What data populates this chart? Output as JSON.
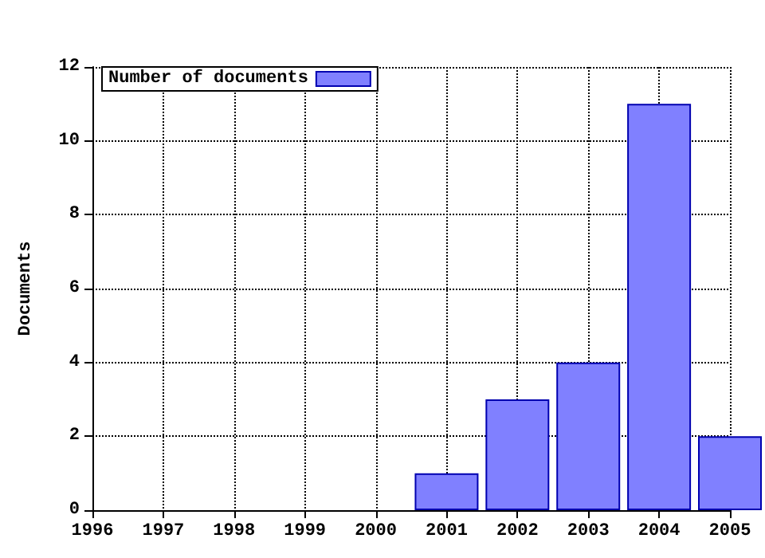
{
  "chart_data": {
    "type": "bar",
    "ylabel": "Documents",
    "x": [
      1996,
      1997,
      1998,
      1999,
      2000,
      2001,
      2002,
      2003,
      2004,
      2005
    ],
    "series": [
      {
        "name": "Number of documents",
        "color": "#8080ff",
        "values": [
          0,
          0,
          0,
          0,
          0,
          1,
          3,
          4,
          11,
          2
        ]
      }
    ],
    "xlim": [
      1996,
      2005
    ],
    "xticks": [
      1996,
      1997,
      1998,
      1999,
      2000,
      2001,
      2002,
      2003,
      2004,
      2005
    ],
    "ylim": [
      0,
      12
    ],
    "yticks": [
      0,
      2,
      4,
      6,
      8,
      10,
      12
    ],
    "grid": true,
    "legend": "top left"
  }
}
